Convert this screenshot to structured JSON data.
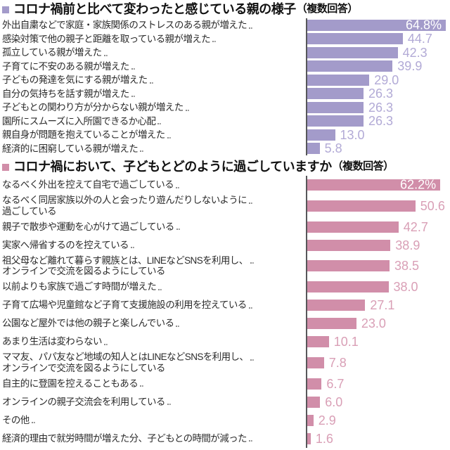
{
  "page": {
    "background": "#ffffff"
  },
  "chart_data": [
    {
      "type": "bar",
      "orientation": "horizontal",
      "title": "コロナ禍前と比べて変わったと感じている親の様子",
      "title_note": "（複数回答）",
      "unit": "%",
      "xlim": [
        0,
        66
      ],
      "grid": false,
      "legend": "none",
      "bar_color": "#a39bca",
      "value_text_color": "#b2aad6",
      "rows": [
        {
          "label": "外出自粛などで家庭・家族関係のストレスのある親が増えた",
          "value": 64.8,
          "display": "64.8%",
          "value_inside": true
        },
        {
          "label": "感染対策で他の親子と距離を取っている親が増えた",
          "value": 44.7,
          "display": "44.7",
          "value_inside": false
        },
        {
          "label": "孤立している親が増えた",
          "value": 42.3,
          "display": "42.3",
          "value_inside": false
        },
        {
          "label": "子育てに不安のある親が増えた",
          "value": 39.9,
          "display": "39.9",
          "value_inside": false
        },
        {
          "label": "子どもの発達を気にする親が増えた",
          "value": 29.0,
          "display": "29.0",
          "value_inside": false
        },
        {
          "label": "自分の気持ちを話す親が増えた",
          "value": 26.3,
          "display": "26.3",
          "value_inside": false
        },
        {
          "label": "子どもとの関わり方が分からない親が増えた",
          "value": 26.3,
          "display": "26.3",
          "value_inside": false
        },
        {
          "label": "園所にスムーズに入所園できるか心配",
          "value": 26.3,
          "display": "26.3",
          "value_inside": false
        },
        {
          "label": "親自身が問題を抱えていることが増えた",
          "value": 13.0,
          "display": "13.0",
          "value_inside": false
        },
        {
          "label": "経済的に困窮している親が増えた",
          "value": 5.8,
          "display": "5.8",
          "value_inside": false
        }
      ]
    },
    {
      "type": "bar",
      "orientation": "horizontal",
      "title": "コロナ禍において、子どもとどのように過ごしていますか",
      "title_note": "（複数回答）",
      "unit": "%",
      "xlim": [
        0,
        66
      ],
      "grid": false,
      "legend": "none",
      "bar_color": "#d18ea9",
      "value_text_color": "#d99fb6",
      "rows": [
        {
          "label": "なるべく外出を控えて自宅で過ごしている",
          "value": 62.2,
          "display": "62.2%",
          "value_inside": true
        },
        {
          "label": "なるべく同居家族以外の人と会ったり遊んだりしないように",
          "label_line2": "過ごしている",
          "value": 50.6,
          "display": "50.6",
          "value_inside": false
        },
        {
          "label": "親子で散歩や運動を心がけて過ごしている",
          "value": 42.7,
          "display": "42.7",
          "value_inside": false
        },
        {
          "label": "実家へ帰省するのを控えている",
          "value": 38.9,
          "display": "38.9",
          "value_inside": false
        },
        {
          "label": "祖父母など離れて暮らす親族とは、LINEなどSNSを利用し、",
          "label_line2": "オンラインで交流を図るようにしている",
          "value": 38.5,
          "display": "38.5",
          "value_inside": false
        },
        {
          "label": "以前よりも家族で過ごす時間が増えた",
          "value": 38.0,
          "display": "38.0",
          "value_inside": false
        },
        {
          "label": "子育て広場や児童館など子育て支援施設の利用を控えている",
          "value": 27.1,
          "display": "27.1",
          "value_inside": false
        },
        {
          "label": "公園など屋外では他の親子と楽しんでいる",
          "value": 23.0,
          "display": "23.0",
          "value_inside": false
        },
        {
          "label": "あまり生活は変わらない",
          "value": 10.1,
          "display": "10.1",
          "value_inside": false
        },
        {
          "label": "ママ友、パパ友など地域の知人とはLINEなどSNSを利用し、",
          "label_line2": "オンラインで交流を図るようにしている",
          "value": 7.8,
          "display": "7.8",
          "value_inside": false
        },
        {
          "label": "自主的に登園を控えることもある",
          "value": 6.7,
          "display": "6.7",
          "value_inside": false
        },
        {
          "label": "オンラインの親子交流会を利用している",
          "value": 6.0,
          "display": "6.0",
          "value_inside": false
        },
        {
          "label": "その他",
          "value": 2.9,
          "display": "2.9",
          "value_inside": false
        },
        {
          "label": "経済的理由で就労時間が増えた分、子どもとの時間が減った",
          "value": 1.6,
          "display": "1.6",
          "value_inside": false
        }
      ]
    }
  ]
}
